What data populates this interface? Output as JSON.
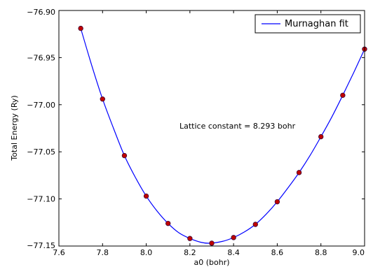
{
  "chart_data": {
    "type": "scatter",
    "xlabel": "a0 (bohr)",
    "ylabel": "Total Energy (Ry)",
    "xlim": [
      7.6,
      9.0
    ],
    "ylim": [
      -77.15,
      -76.9
    ],
    "x_ticks": [
      7.6,
      7.8,
      8.0,
      8.2,
      8.4,
      8.6,
      8.8,
      9.0
    ],
    "x_tick_labels": [
      "7.6",
      "7.8",
      "8.0",
      "8.2",
      "8.4",
      "8.6",
      "8.8",
      "9.0"
    ],
    "y_ticks": [
      -76.9,
      -76.95,
      -77.0,
      -77.05,
      -77.1,
      -77.15
    ],
    "y_tick_labels": [
      "−76.90",
      "−76.95",
      "−77.00",
      "−77.05",
      "−77.10",
      "−77.15"
    ],
    "grid": false,
    "legend": {
      "position": "top-right",
      "entries": [
        {
          "name": "Murnaghan fit",
          "color": "#0000ff",
          "style": "line"
        }
      ]
    },
    "annotation": "Lattice constant = 8.293 bohr",
    "series": [
      {
        "name": "data points",
        "style": "markers",
        "color": "#c00000",
        "edge_color": "#3b0a3b",
        "x": [
          7.7,
          7.8,
          7.9,
          8.0,
          8.1,
          8.2,
          8.3,
          8.4,
          8.5,
          8.6,
          8.7,
          8.8,
          8.9,
          9.0
        ],
        "y": [
          -76.919,
          -76.994,
          -77.054,
          -77.097,
          -77.126,
          -77.142,
          -77.147,
          -77.141,
          -77.127,
          -77.103,
          -77.072,
          -77.034,
          -76.99,
          -76.941
        ]
      },
      {
        "name": "Murnaghan fit",
        "style": "line",
        "color": "#0000ff",
        "x": [
          7.7,
          7.75,
          7.8,
          7.85,
          7.9,
          7.95,
          8.0,
          8.05,
          8.1,
          8.15,
          8.2,
          8.25,
          8.29,
          8.35,
          8.4,
          8.45,
          8.5,
          8.55,
          8.6,
          8.65,
          8.7,
          8.75,
          8.8,
          8.85,
          8.9,
          8.95,
          9.0
        ],
        "y": [
          -76.919,
          -76.958,
          -76.994,
          -77.025,
          -77.054,
          -77.077,
          -77.097,
          -77.113,
          -77.126,
          -77.136,
          -77.142,
          -77.146,
          -77.147,
          -77.145,
          -77.141,
          -77.135,
          -77.127,
          -77.116,
          -77.103,
          -77.088,
          -77.072,
          -77.054,
          -77.034,
          -77.013,
          -76.99,
          -76.966,
          -76.941
        ]
      }
    ]
  }
}
